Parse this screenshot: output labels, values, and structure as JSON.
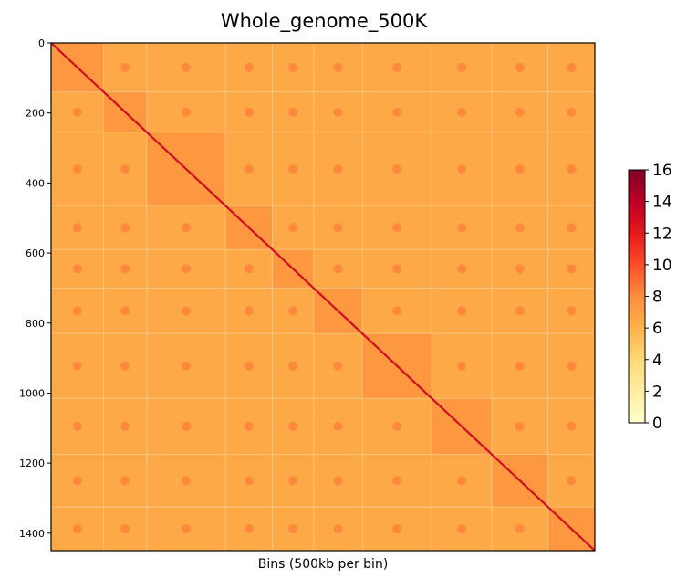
{
  "chart_data": {
    "type": "heatmap",
    "title": "Whole_genome_500K",
    "xlabel": "Bins (500kb per bin)",
    "ylabel": "",
    "n_bins": 1450,
    "ylim": [
      0,
      1450
    ],
    "y_ticks": [
      0,
      200,
      400,
      600,
      800,
      1000,
      1200,
      1400
    ],
    "x_ticks_visible": false,
    "colorbar": {
      "min": 0,
      "max": 16,
      "ticks": [
        0,
        2,
        4,
        6,
        8,
        10,
        12,
        14,
        16
      ],
      "colors": [
        "#ffffcc",
        "#ffeda0",
        "#fed976",
        "#feb24c",
        "#fd8d3c",
        "#fc4e2a",
        "#e31a1c",
        "#bd0026",
        "#800026"
      ]
    },
    "background_value": 6.5,
    "diagonal_value": 13,
    "chromosome_boundaries": [
      0,
      140,
      255,
      465,
      590,
      700,
      830,
      1015,
      1175,
      1325,
      1450
    ],
    "colors": {
      "background": "#fbbf63",
      "diagonal": "#d21b1f",
      "gap_line": "#fde9b5"
    }
  }
}
